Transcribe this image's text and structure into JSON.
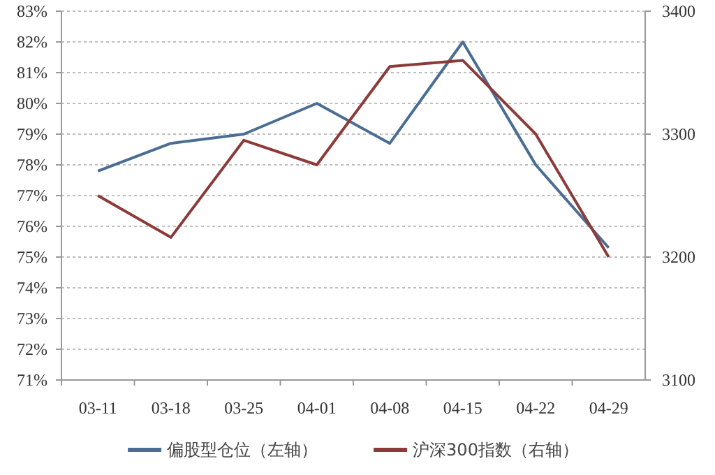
{
  "chart_data": {
    "type": "line",
    "categories": [
      "03-11",
      "03-18",
      "03-25",
      "04-01",
      "04-08",
      "04-15",
      "04-22",
      "04-29"
    ],
    "series": [
      {
        "name": "偏股型仓位（左轴）",
        "color": "#4a6d94",
        "values": [
          77.8,
          78.7,
          79.0,
          80.0,
          78.7,
          82.0,
          78.0,
          75.3
        ]
      },
      {
        "name": "沪深300指数（右轴）",
        "color": "#8c3b3b",
        "axis": "y2",
        "values": [
          3250,
          3216,
          3295,
          3275,
          3355,
          3360,
          3300,
          3200
        ]
      }
    ],
    "ylim": [
      71,
      83
    ],
    "yticks": [
      {
        "value": 71,
        "label": "71%"
      },
      {
        "value": 72,
        "label": "72%"
      },
      {
        "value": 73,
        "label": "73%"
      },
      {
        "value": 74,
        "label": "74%"
      },
      {
        "value": 75,
        "label": "75%"
      },
      {
        "value": 76,
        "label": "76%"
      },
      {
        "value": 77,
        "label": "77%"
      },
      {
        "value": 78,
        "label": "78%"
      },
      {
        "value": 79,
        "label": "79%"
      },
      {
        "value": 80,
        "label": "80%"
      },
      {
        "value": 81,
        "label": "81%"
      },
      {
        "value": 82,
        "label": "82%"
      },
      {
        "value": 83,
        "label": "83%"
      }
    ],
    "y2lim": [
      3100,
      3400
    ],
    "y2ticks": [
      3100,
      3200,
      3300,
      3400
    ],
    "grid": "y",
    "legend": "bottom",
    "marker": "none",
    "line_style": "solid"
  }
}
